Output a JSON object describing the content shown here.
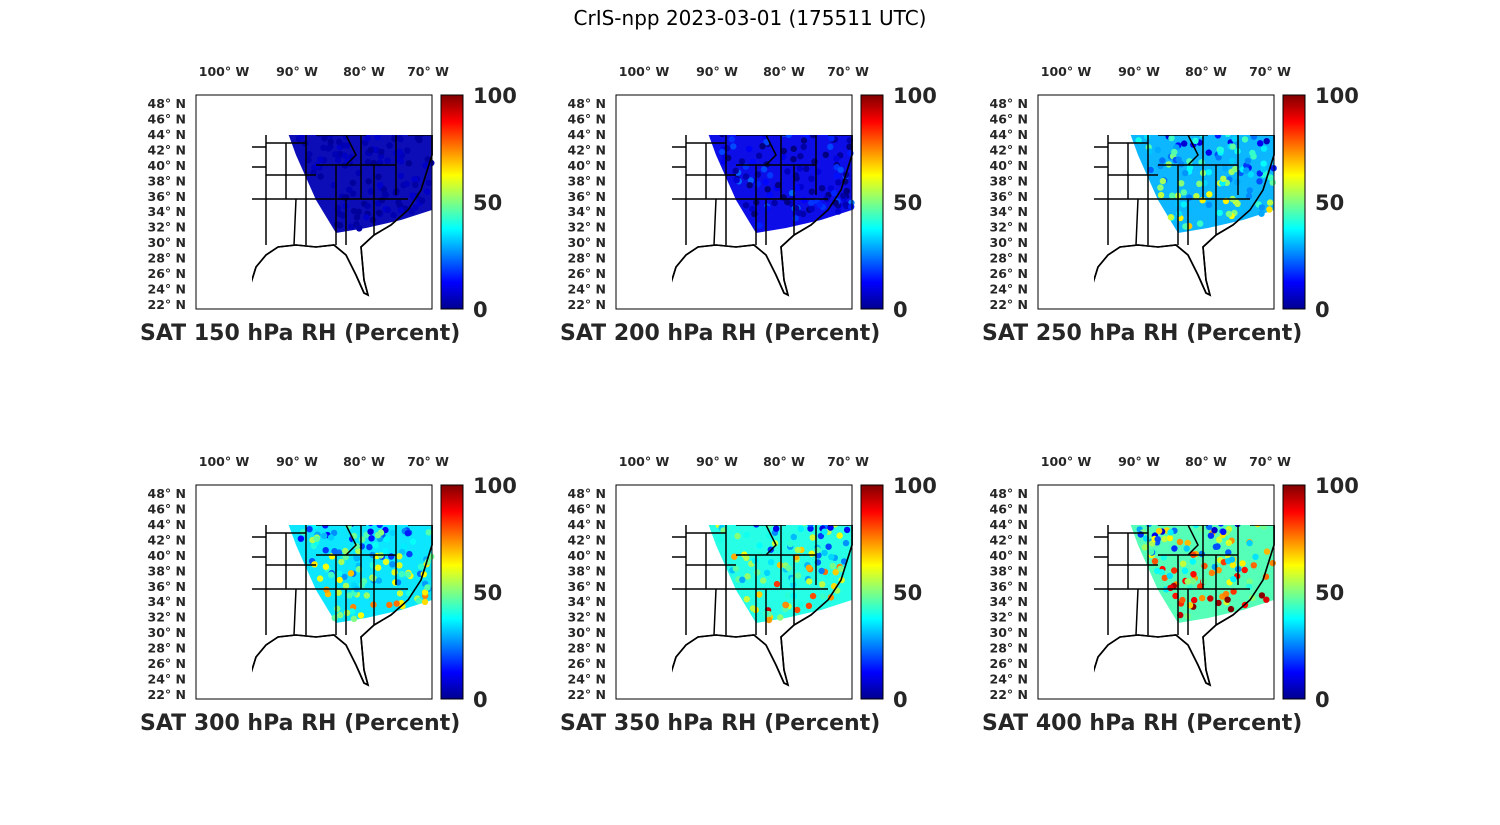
{
  "figure": {
    "title": "CrIS-npp 2023-03-01 (175511 UTC)"
  },
  "axes": {
    "lon_ticks": [
      "100",
      "90",
      "80",
      "70"
    ],
    "lon_hemisphere": "W",
    "lat_ticks": [
      "48",
      "46",
      "44",
      "42",
      "40",
      "38",
      "36",
      "34",
      "32",
      "30",
      "28",
      "26",
      "24",
      "22"
    ],
    "lat_hemisphere": "N",
    "lon_range": [
      -106,
      -66
    ],
    "lat_range": [
      22,
      50
    ]
  },
  "colorbar": {
    "colormap": "jet",
    "range": [
      0,
      100
    ],
    "ticks": [
      "0",
      "50",
      "100"
    ]
  },
  "colors": {
    "land_fill": "#ffffff",
    "borders": "#000000",
    "jet_stops": [
      "#00008f",
      "#0000ff",
      "#0080ff",
      "#00ffff",
      "#80ff80",
      "#ffff00",
      "#ff8000",
      "#ff0000",
      "#800000"
    ]
  },
  "panels": [
    {
      "title": "SAT 150 hPa RH (Percent)",
      "coverage": "swath-east",
      "mean_rh_pct": 5
    },
    {
      "title": "SAT 200 hPa RH (Percent)",
      "coverage": "swath-east",
      "mean_rh_pct": 10
    },
    {
      "title": "SAT 250 hPa RH (Percent)",
      "coverage": "swath-east",
      "mean_rh_pct": 30
    },
    {
      "title": "SAT 300 hPa RH (Percent)",
      "coverage": "swath-east",
      "mean_rh_pct": 35
    },
    {
      "title": "SAT 350 hPa RH (Percent)",
      "coverage": "swath-east",
      "mean_rh_pct": 40
    },
    {
      "title": "SAT 400 hPa RH (Percent)",
      "coverage": "swath-east",
      "mean_rh_pct": 45
    }
  ]
}
